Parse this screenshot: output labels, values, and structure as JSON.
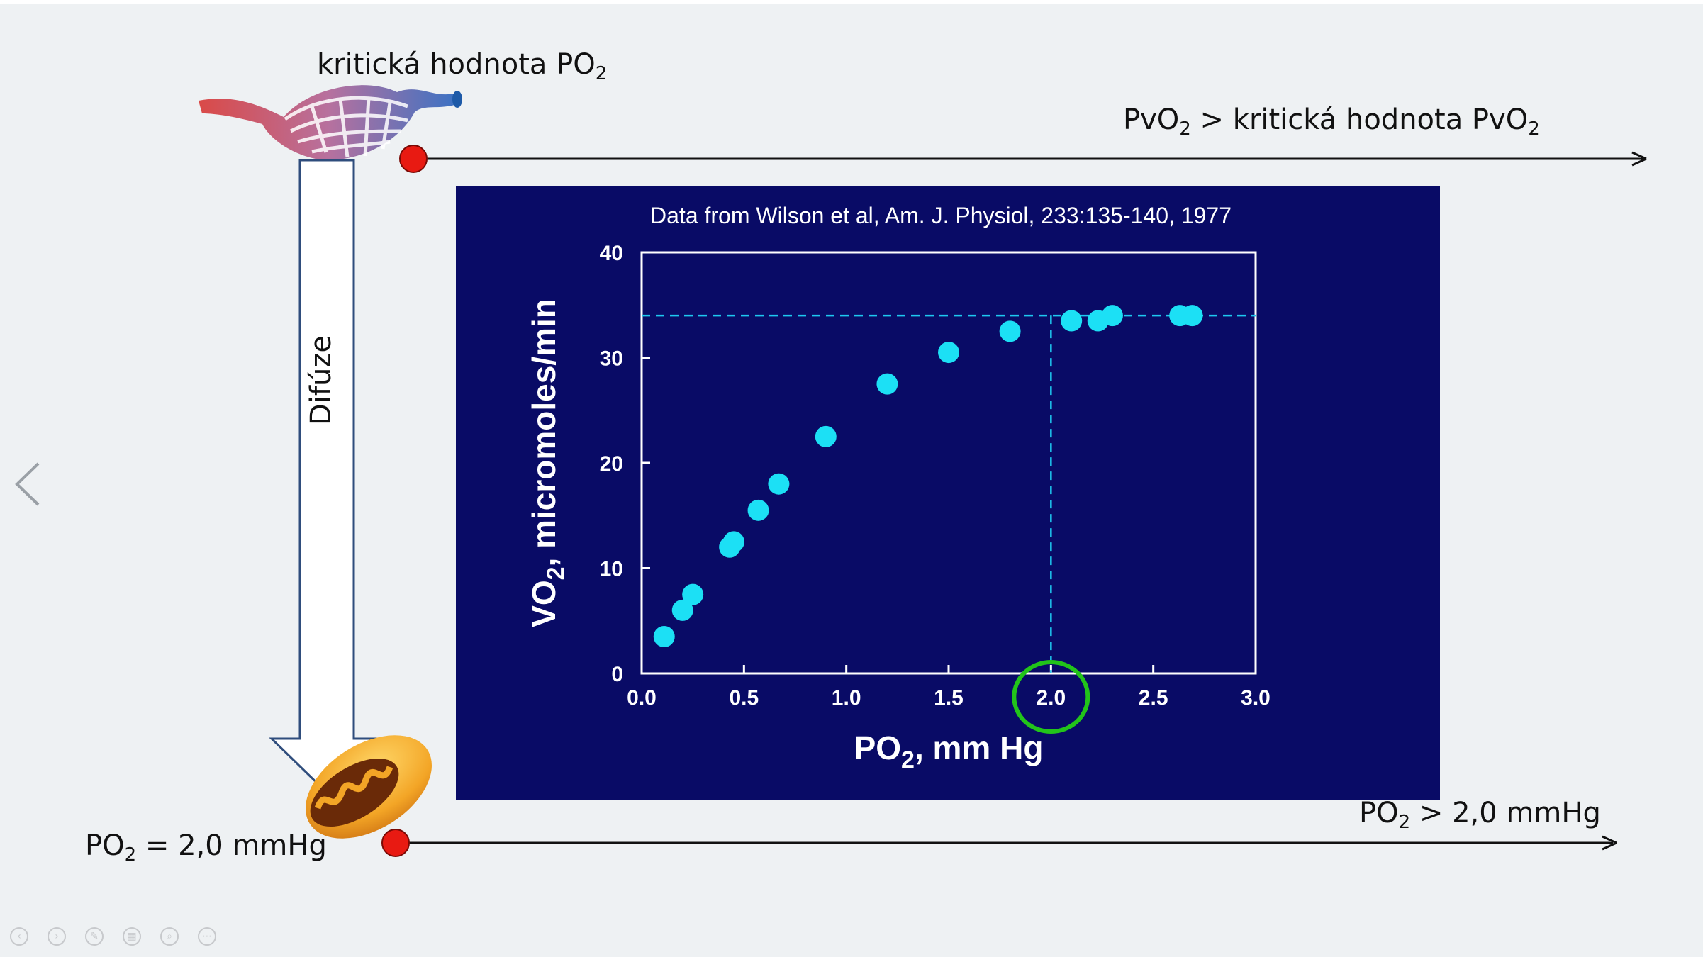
{
  "slide": {
    "critical_label": {
      "text": "kritická hodnota PO",
      "sub": "2"
    },
    "pvo2_label": {
      "p1": "PvO",
      "s1": "2",
      "p2": " > kritická hodnota PvO",
      "s2": "2"
    },
    "po2_equal_label": {
      "p1": "PO",
      "s1": "2",
      "p2": " = 2,0 mmHg"
    },
    "po2_greater_label": {
      "p1": "PO",
      "s1": "2",
      "p2": " > 2,0 mmHg"
    },
    "diffusion_label": "Difúze",
    "colors": {
      "red_dot": "#e81a12",
      "panel": "#090b66",
      "point": "#1ce0f5",
      "highlight_circle": "#22c41a"
    }
  },
  "chart_data": {
    "type": "scatter",
    "title": "Data from Wilson et al, Am. J. Physiol, 233:135-140, 1977",
    "xlabel": {
      "p1": "PO",
      "s1": "2",
      "p2": ",  mm Hg"
    },
    "ylabel": {
      "p1": "VO",
      "s1": "2",
      "p2": ",  micromoles/min"
    },
    "xlim": [
      0.0,
      3.0
    ],
    "ylim": [
      0,
      40
    ],
    "x_ticks": [
      "0.0",
      "0.5",
      "1.0",
      "1.5",
      "2.0",
      "2.5",
      "3.0"
    ],
    "y_ticks": [
      "0",
      "10",
      "20",
      "30",
      "40"
    ],
    "points": [
      {
        "x": 0.11,
        "y": 3.5
      },
      {
        "x": 0.2,
        "y": 6.0
      },
      {
        "x": 0.25,
        "y": 7.5
      },
      {
        "x": 0.43,
        "y": 12.0
      },
      {
        "x": 0.45,
        "y": 12.5
      },
      {
        "x": 0.57,
        "y": 15.5
      },
      {
        "x": 0.67,
        "y": 18.0
      },
      {
        "x": 0.9,
        "y": 22.5
      },
      {
        "x": 1.2,
        "y": 27.5
      },
      {
        "x": 1.5,
        "y": 30.5
      },
      {
        "x": 1.8,
        "y": 32.5
      },
      {
        "x": 2.1,
        "y": 33.5
      },
      {
        "x": 2.23,
        "y": 33.5
      },
      {
        "x": 2.3,
        "y": 34.0
      },
      {
        "x": 2.63,
        "y": 34.0
      },
      {
        "x": 2.69,
        "y": 34.0
      }
    ],
    "reference_lines": {
      "y": 34.0,
      "x": 2.0
    },
    "highlighted_x": 2.0,
    "grid": false,
    "legend": "none"
  }
}
